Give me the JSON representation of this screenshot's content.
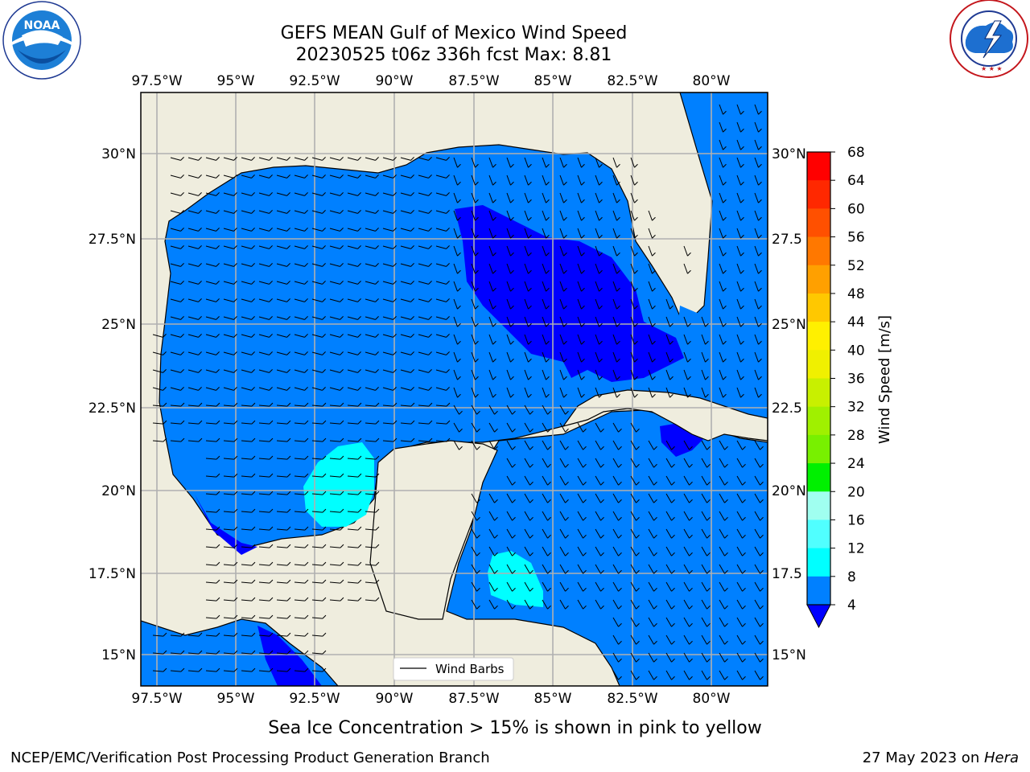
{
  "title": {
    "line1": "GEFS MEAN Gulf of Mexico Wind Speed",
    "line2": "20230525 t06z 336h fcst   Max: 8.81"
  },
  "logos": {
    "left": {
      "text": "NOAA",
      "ring_text": "NATIONAL OCEANIC AND ATMOSPHERIC ADMINISTRATION · U.S. DEPARTMENT OF COMMERCE"
    },
    "right": {
      "ring_text": "NATIONAL WEATHER SERVICE"
    }
  },
  "map": {
    "lon_labels": [
      "97.5°W",
      "95°W",
      "92.5°W",
      "90°W",
      "87.5°W",
      "85°W",
      "82.5°W",
      "80°W"
    ],
    "lat_labels": [
      "30°N",
      "27.5°N",
      "25°N",
      "22.5°N",
      "20°N",
      "17.5°N",
      "15°N"
    ],
    "lat_labels_right": [
      "30°N",
      "27.5",
      "25°N",
      "22.5",
      "20°N",
      "17.5",
      "15°N"
    ],
    "legend_label": "Wind Barbs",
    "colors": {
      "land": "#efedde",
      "ocean": "#0080ff",
      "light": "#00ffff",
      "dark": "#0000ff",
      "grid": "#b0b0b0"
    }
  },
  "colorbar": {
    "label": "Wind Speed [m/s]",
    "ticks": [
      "68",
      "64",
      "60",
      "56",
      "52",
      "48",
      "44",
      "40",
      "36",
      "32",
      "28",
      "24",
      "20",
      "16",
      "12",
      "8",
      "4"
    ],
    "colors": [
      "#ff0000",
      "#ff2800",
      "#ff5000",
      "#ff7800",
      "#ffa000",
      "#ffc800",
      "#fff000",
      "#f0f000",
      "#c8f000",
      "#a0f000",
      "#78f000",
      "#00f000",
      "#00c800",
      "#50f078",
      "#a0fff0",
      "#50ffff",
      "#00ffff",
      "#0080ff"
    ],
    "extend_color": "#0000ff"
  },
  "note": "Sea Ice Concentration > 15% is shown in pink to yellow",
  "footer": {
    "left": "NCEP/EMC/Verification Post Processing Product Generation Branch",
    "right_date": "27 May 2023 on ",
    "right_host": "Hera"
  }
}
